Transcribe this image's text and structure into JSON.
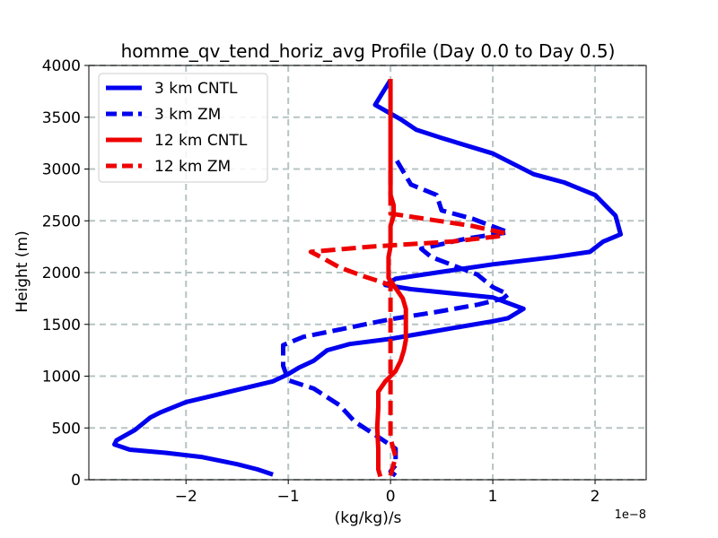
{
  "chart_data": {
    "type": "line",
    "title": "homme_qv_tend_horiz_avg Profile (Day 0.0 to Day 0.5)",
    "xlabel": "(kg/kg)/s",
    "ylabel": "Height (m)",
    "x_offset_label": "1e−8",
    "xlim": [
      -2.95,
      2.5
    ],
    "ylim": [
      0,
      4000
    ],
    "x_ticks": [
      -2,
      -1,
      0,
      1,
      2
    ],
    "x_tick_labels": [
      "−2",
      "−1",
      "0",
      "1",
      "2"
    ],
    "y_ticks": [
      0,
      500,
      1000,
      1500,
      2000,
      2500,
      3000,
      3500,
      4000
    ],
    "y_tick_labels": [
      "0",
      "500",
      "1000",
      "1500",
      "2000",
      "2500",
      "3000",
      "3500",
      "4000"
    ],
    "x_scale": "x values in units of 1e-8 (kg/kg)/s",
    "grid": true,
    "legend_position": "top-left",
    "series": [
      {
        "name": "3 km CNTL",
        "color": "#0000ee",
        "style": "solid",
        "points": [
          [
            -1.15,
            50
          ],
          [
            -1.3,
            100
          ],
          [
            -1.5,
            150
          ],
          [
            -1.85,
            220
          ],
          [
            -2.2,
            260
          ],
          [
            -2.55,
            290
          ],
          [
            -2.7,
            340
          ],
          [
            -2.68,
            380
          ],
          [
            -2.5,
            480
          ],
          [
            -2.35,
            600
          ],
          [
            -2.25,
            650
          ],
          [
            -2.0,
            750
          ],
          [
            -1.7,
            820
          ],
          [
            -1.45,
            880
          ],
          [
            -1.15,
            950
          ],
          [
            -1.0,
            1020
          ],
          [
            -0.9,
            1080
          ],
          [
            -0.75,
            1150
          ],
          [
            -0.62,
            1250
          ],
          [
            -0.4,
            1310
          ],
          [
            0.0,
            1360
          ],
          [
            0.35,
            1420
          ],
          [
            0.7,
            1480
          ],
          [
            1.0,
            1530
          ],
          [
            1.15,
            1560
          ],
          [
            1.3,
            1650
          ],
          [
            1.0,
            1760
          ],
          [
            0.7,
            1790
          ],
          [
            0.2,
            1840
          ],
          [
            -0.05,
            1880
          ],
          [
            0.05,
            1940
          ],
          [
            0.45,
            2000
          ],
          [
            1.0,
            2080
          ],
          [
            1.6,
            2150
          ],
          [
            1.95,
            2200
          ],
          [
            2.08,
            2300
          ],
          [
            2.25,
            2370
          ],
          [
            2.2,
            2550
          ],
          [
            2.0,
            2750
          ],
          [
            1.7,
            2870
          ],
          [
            1.4,
            2950
          ],
          [
            1.0,
            3150
          ],
          [
            0.5,
            3300
          ],
          [
            0.25,
            3380
          ],
          [
            0.1,
            3480
          ],
          [
            -0.15,
            3620
          ],
          [
            -0.1,
            3700
          ],
          [
            0.0,
            3860
          ]
        ]
      },
      {
        "name": "3 km ZM",
        "color": "#0000ee",
        "style": "dashed",
        "points": [
          [
            0.05,
            40
          ],
          [
            0.0,
            80
          ],
          [
            0.05,
            140
          ],
          [
            0.05,
            200
          ],
          [
            0.05,
            300
          ],
          [
            -0.1,
            400
          ],
          [
            -0.35,
            560
          ],
          [
            -0.5,
            720
          ],
          [
            -0.75,
            880
          ],
          [
            -1.0,
            960
          ],
          [
            -1.05,
            1100
          ],
          [
            -1.05,
            1300
          ],
          [
            -0.85,
            1380
          ],
          [
            -0.55,
            1440
          ],
          [
            0.0,
            1550
          ],
          [
            0.45,
            1620
          ],
          [
            0.85,
            1690
          ],
          [
            1.1,
            1750
          ],
          [
            1.15,
            1790
          ],
          [
            1.0,
            1860
          ],
          [
            0.85,
            1980
          ],
          [
            0.4,
            2150
          ],
          [
            0.3,
            2230
          ],
          [
            0.75,
            2330
          ],
          [
            1.15,
            2390
          ],
          [
            0.8,
            2520
          ],
          [
            0.5,
            2600
          ],
          [
            0.45,
            2750
          ],
          [
            0.2,
            2850
          ],
          [
            0.05,
            3100
          ]
        ]
      },
      {
        "name": "12 km CNTL",
        "color": "#ee0000",
        "style": "solid",
        "points": [
          [
            -0.1,
            30
          ],
          [
            -0.12,
            100
          ],
          [
            -0.12,
            300
          ],
          [
            -0.13,
            500
          ],
          [
            -0.12,
            700
          ],
          [
            -0.12,
            850
          ],
          [
            -0.05,
            950
          ],
          [
            0.05,
            1050
          ],
          [
            0.1,
            1150
          ],
          [
            0.13,
            1250
          ],
          [
            0.15,
            1350
          ],
          [
            0.15,
            1450
          ],
          [
            0.15,
            1550
          ],
          [
            0.15,
            1650
          ],
          [
            0.12,
            1750
          ],
          [
            0.05,
            1850
          ],
          [
            -0.02,
            1950
          ],
          [
            -0.02,
            2050
          ],
          [
            -0.02,
            2150
          ],
          [
            0.0,
            2250
          ],
          [
            0.0,
            2350
          ],
          [
            0.0,
            2450
          ],
          [
            0.03,
            2550
          ],
          [
            0.03,
            2650
          ],
          [
            0.0,
            2750
          ],
          [
            0.0,
            2850
          ],
          [
            0.0,
            3000
          ],
          [
            0.0,
            3200
          ],
          [
            0.0,
            3400
          ],
          [
            0.0,
            3600
          ],
          [
            0.0,
            3750
          ],
          [
            0.0,
            3870
          ]
        ]
      },
      {
        "name": "12 km ZM",
        "color": "#ee0000",
        "style": "dashed",
        "points": [
          [
            0.0,
            40
          ],
          [
            0.03,
            150
          ],
          [
            0.05,
            220
          ],
          [
            0.0,
            400
          ],
          [
            0.0,
            800
          ],
          [
            0.0,
            1200
          ],
          [
            0.0,
            1600
          ],
          [
            0.0,
            1880
          ],
          [
            -0.25,
            1960
          ],
          [
            -0.5,
            2050
          ],
          [
            -0.68,
            2150
          ],
          [
            -0.78,
            2200
          ],
          [
            -0.2,
            2250
          ],
          [
            0.6,
            2300
          ],
          [
            1.05,
            2350
          ],
          [
            1.12,
            2380
          ],
          [
            0.8,
            2450
          ],
          [
            0.0,
            2570
          ],
          [
            0.0,
            2700
          ],
          [
            0.0,
            2850
          ],
          [
            0.0,
            3000
          ]
        ]
      }
    ]
  }
}
